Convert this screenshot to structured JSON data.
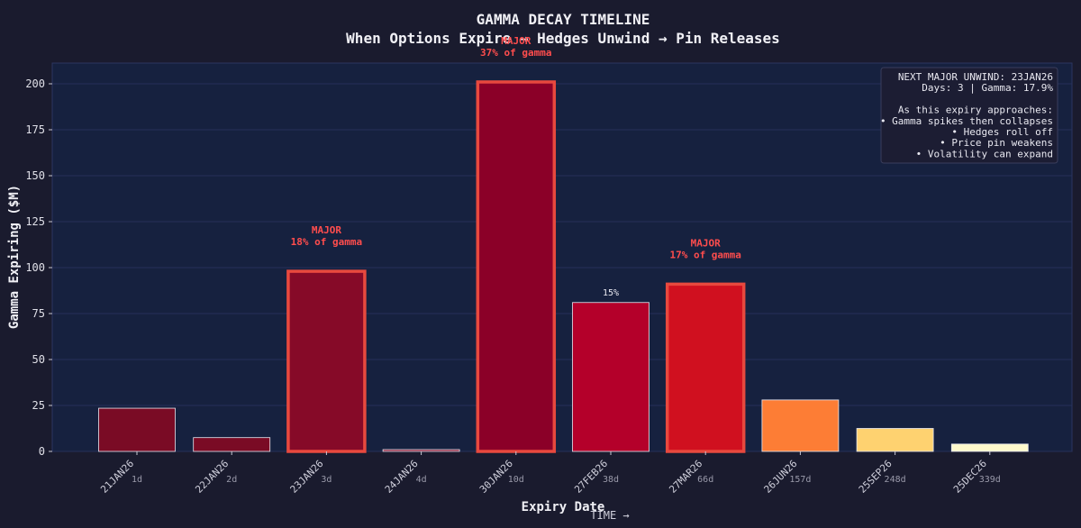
{
  "chart_data": {
    "type": "bar",
    "title": "GAMMA DECAY TIMELINE",
    "subtitle": "When Options Expire → Hedges Unwind → Pin Releases",
    "xlabel": "Expiry Date",
    "ylabel": "Gamma Expiring ($M)",
    "time_label": "TIME →",
    "ylim": [
      0,
      210
    ],
    "yticks": [
      0,
      25,
      50,
      75,
      100,
      125,
      150,
      175,
      200
    ],
    "grid": true,
    "categories": [
      "21JAN26",
      "22JAN26",
      "23JAN26",
      "24JAN26",
      "30JAN26",
      "27FEB26",
      "27MAR26",
      "26JUN26",
      "25SEP26",
      "25DEC26"
    ],
    "days": [
      "1d",
      "2d",
      "3d",
      "4d",
      "10d",
      "38d",
      "66d",
      "157d",
      "248d",
      "339d"
    ],
    "values": [
      23.5,
      7.5,
      98,
      1,
      201,
      81,
      91,
      28,
      12.5,
      4
    ],
    "colors": [
      "#7a0b25",
      "#7a0b25",
      "#860a28",
      "#860a28",
      "#8b0028",
      "#b4002a",
      "#d0101f",
      "#fd7d35",
      "#fed270",
      "#fffacc"
    ],
    "major": [
      false,
      false,
      true,
      false,
      true,
      false,
      true,
      false,
      false,
      false
    ],
    "annotations": [
      {
        "index": 2,
        "kind": "major",
        "line1": "MAJOR",
        "line2": "18% of gamma"
      },
      {
        "index": 4,
        "kind": "major",
        "line1": "MAJOR",
        "line2": "37% of gamma"
      },
      {
        "index": 5,
        "kind": "pct",
        "line1": "15%"
      },
      {
        "index": 6,
        "kind": "major",
        "line1": "MAJOR",
        "line2": "17% of gamma"
      }
    ],
    "info_box": {
      "lines": [
        "NEXT MAJOR UNWIND: 23JAN26",
        "Days: 3 | Gamma: 17.9%",
        "",
        "As this expiry approaches:",
        "• Gamma spikes then collapses",
        "• Hedges roll off",
        "• Price pin weakens",
        "• Volatility can expand"
      ]
    },
    "legend": "none"
  }
}
